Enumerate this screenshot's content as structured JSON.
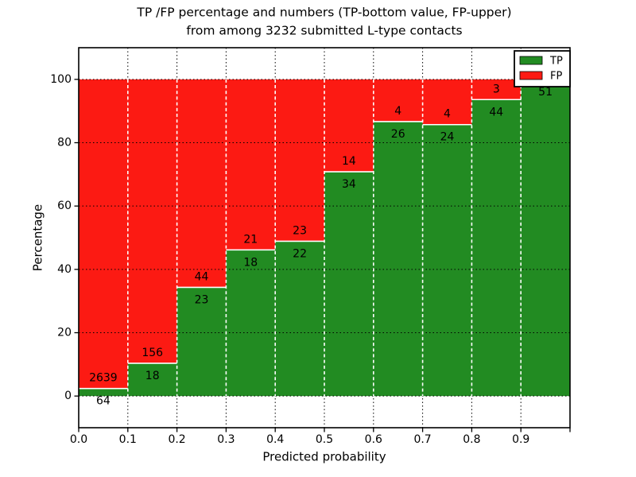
{
  "chart_data": {
    "type": "bar",
    "stacked": true,
    "title_line1": "TP /FP percentage and numbers (TP-bottom value, FP-upper)",
    "title_line2": "from among 3232 submitted L-type contacts",
    "xlabel": "Predicted probability",
    "ylabel": "Percentage",
    "total_submitted": 3232,
    "xlim": [
      0.0,
      1.0
    ],
    "ylim": [
      -10,
      110
    ],
    "xticks": [
      {
        "value": 0.0,
        "label": "0.0"
      },
      {
        "value": 0.1,
        "label": "0.1"
      },
      {
        "value": 0.2,
        "label": "0.2"
      },
      {
        "value": 0.3,
        "label": "0.3"
      },
      {
        "value": 0.4,
        "label": "0.4"
      },
      {
        "value": 0.5,
        "label": "0.5"
      },
      {
        "value": 0.6,
        "label": "0.6"
      },
      {
        "value": 0.7,
        "label": "0.7"
      },
      {
        "value": 0.8,
        "label": "0.8"
      },
      {
        "value": 0.9,
        "label": "0.9"
      },
      {
        "value": 1.0,
        "label": ""
      }
    ],
    "yticks": [
      {
        "value": 0,
        "label": "0"
      },
      {
        "value": 20,
        "label": "20"
      },
      {
        "value": 40,
        "label": "40"
      },
      {
        "value": 60,
        "label": "60"
      },
      {
        "value": 80,
        "label": "80"
      },
      {
        "value": 100,
        "label": "100"
      }
    ],
    "grid": {
      "horizontal": "black-dotted",
      "vertical": "black-dotted",
      "bar_edges": "white-dashed"
    },
    "bins": [
      {
        "range": "0.0-0.1",
        "tp": 64,
        "fp": 2639
      },
      {
        "range": "0.1-0.2",
        "tp": 18,
        "fp": 156
      },
      {
        "range": "0.2-0.3",
        "tp": 23,
        "fp": 44
      },
      {
        "range": "0.3-0.4",
        "tp": 18,
        "fp": 21
      },
      {
        "range": "0.4-0.5",
        "tp": 22,
        "fp": 23
      },
      {
        "range": "0.5-0.6",
        "tp": 34,
        "fp": 14
      },
      {
        "range": "0.6-0.7",
        "tp": 26,
        "fp": 4
      },
      {
        "range": "0.7-0.8",
        "tp": 24,
        "fp": 4
      },
      {
        "range": "0.8-0.9",
        "tp": 44,
        "fp": 3
      },
      {
        "range": "0.9-1.0",
        "tp": 51,
        "fp": 0
      }
    ],
    "series": [
      {
        "name": "TP",
        "color": "#228b22"
      },
      {
        "name": "FP",
        "color": "#fc1a13"
      }
    ],
    "legend": {
      "position": "upper-right",
      "entries": [
        {
          "label": "TP",
          "color": "#228b22"
        },
        {
          "label": "FP",
          "color": "#fc1a13"
        }
      ]
    },
    "colors": {
      "axis": "#000000",
      "text": "#000000",
      "background": "#ffffff",
      "grid_line": "#000000",
      "bar_edge": "#ffffff"
    }
  }
}
